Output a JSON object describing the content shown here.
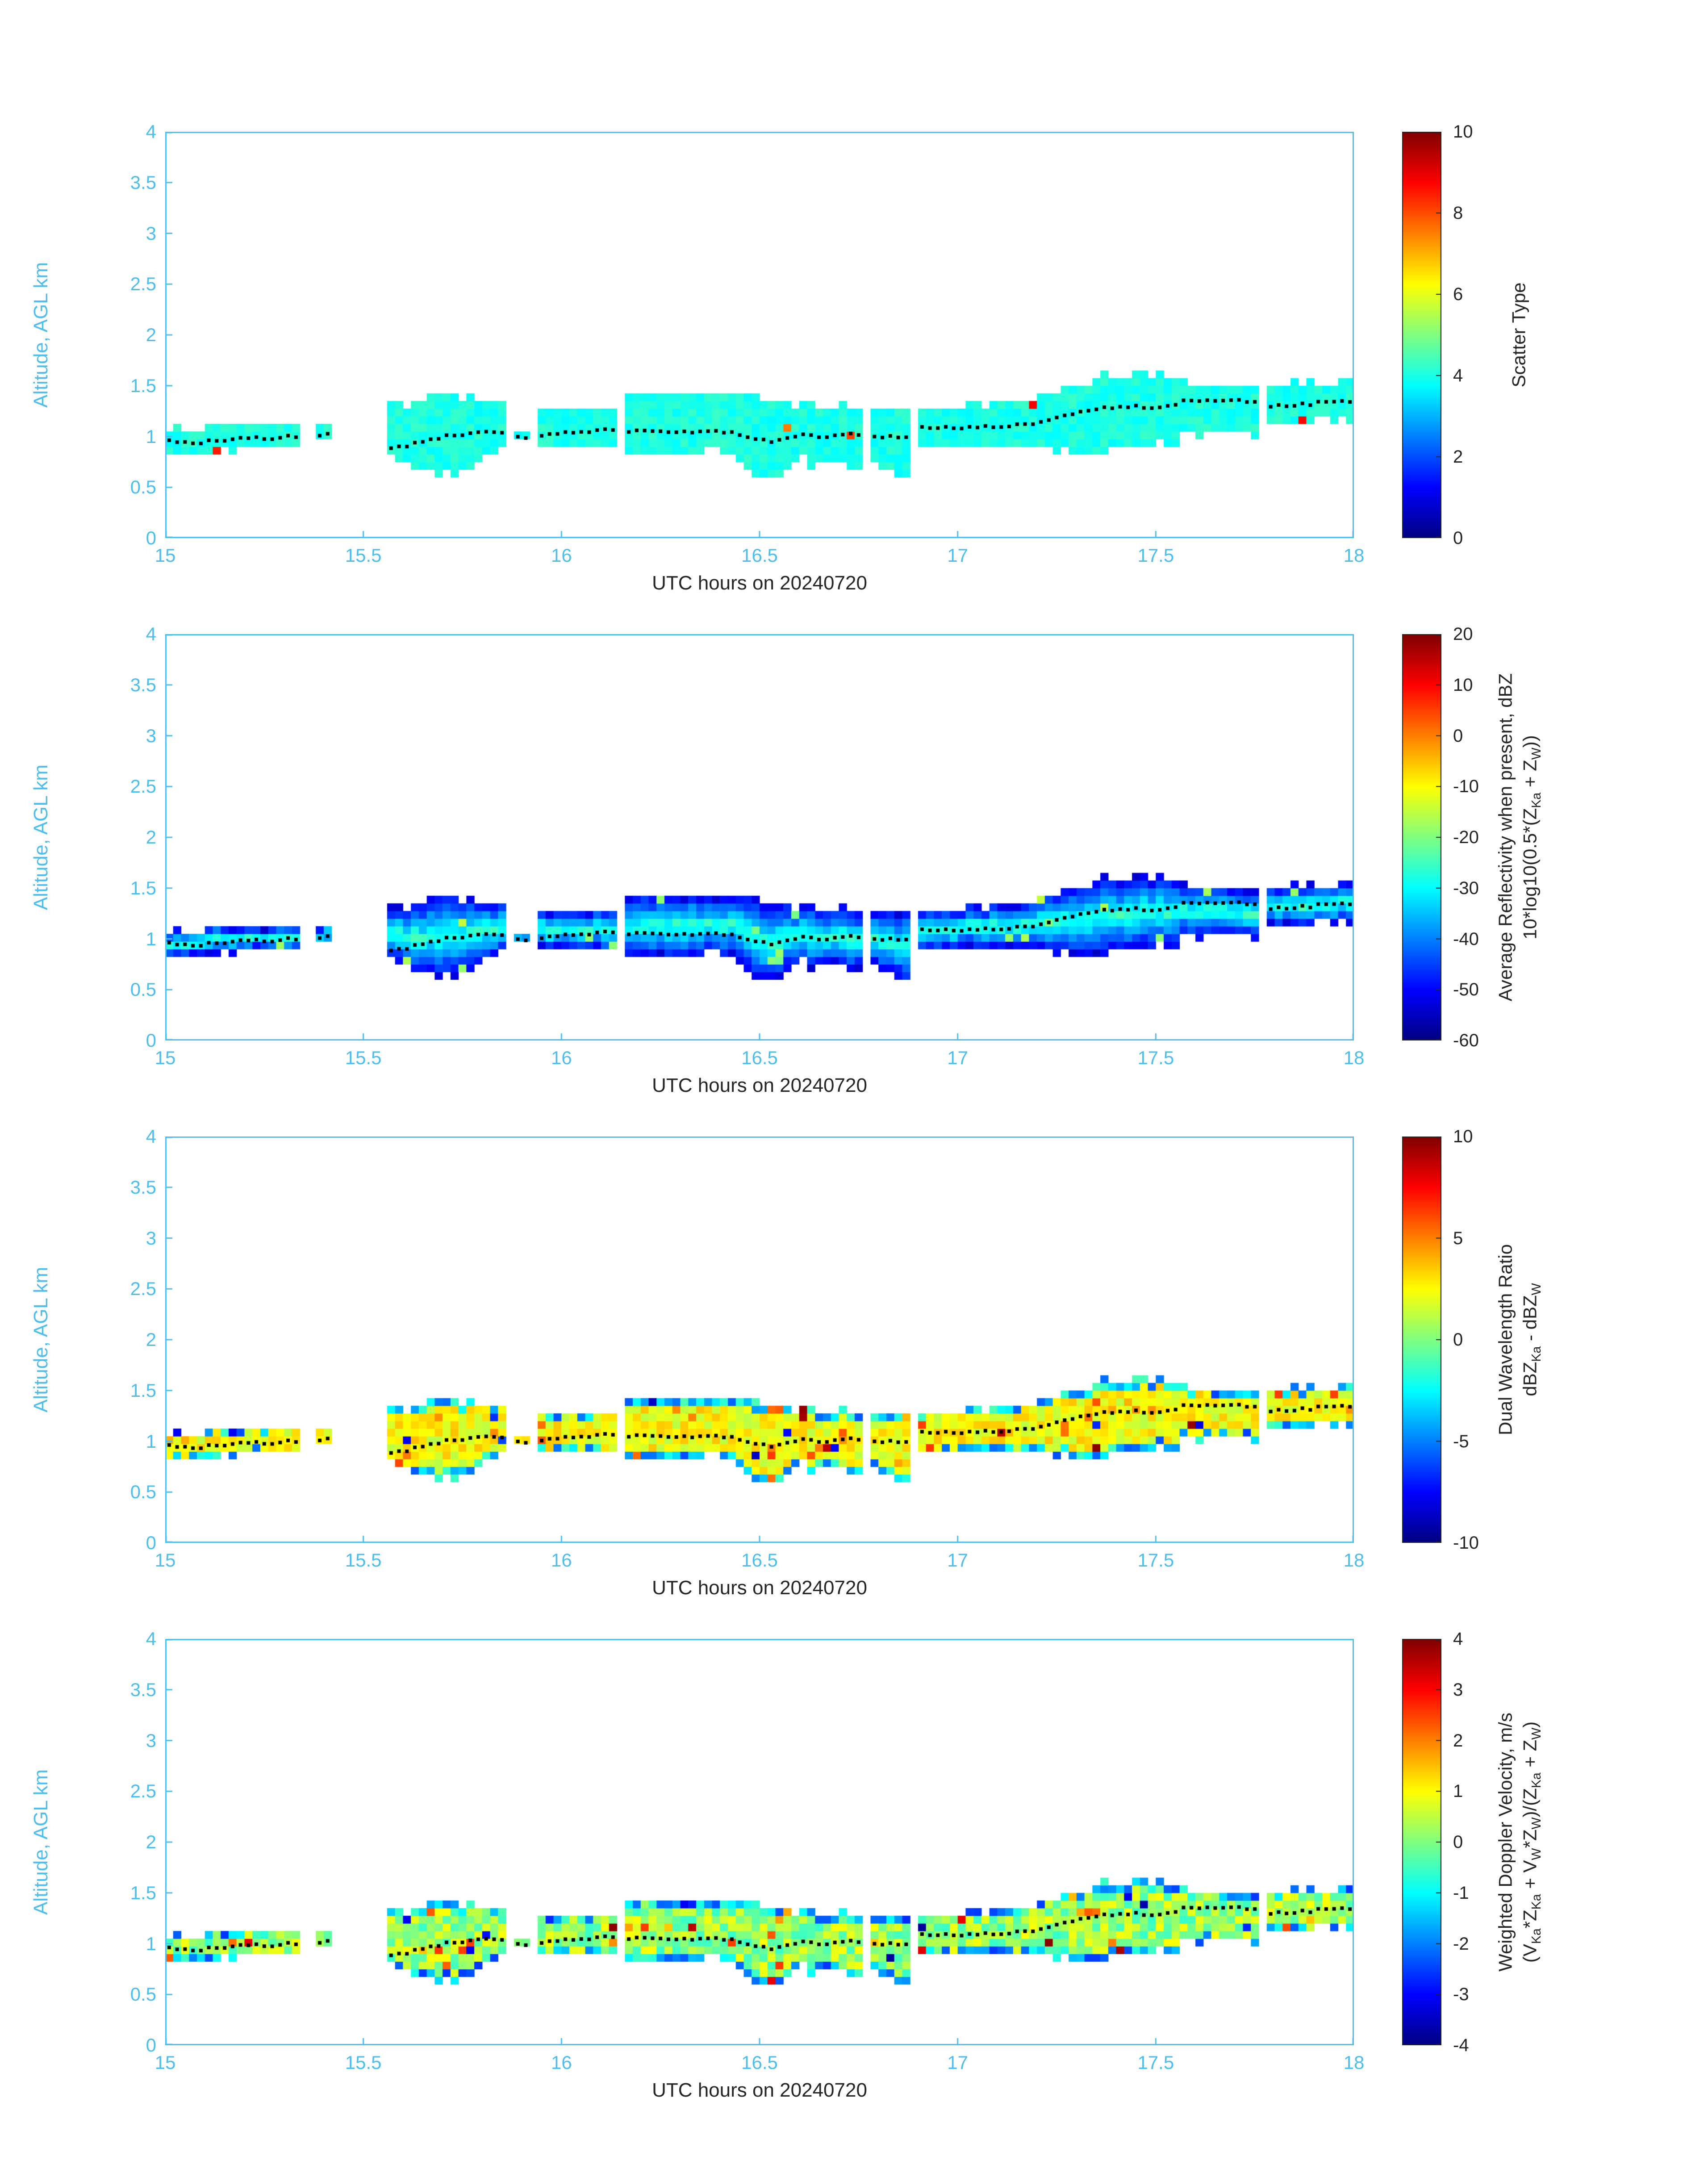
{
  "figure": {
    "background": "#ffffff",
    "axis_color": "#4DBEEE",
    "text_color": "#262626",
    "dot_color": "#000000",
    "date_shown": "20240720"
  },
  "chart_data": [
    {
      "type": "heatmap",
      "xlabel": "UTC hours on 20240720",
      "ylabel": "Altitude, AGL km",
      "xlim": [
        15,
        18
      ],
      "ylim": [
        0,
        4
      ],
      "xtick_values": [
        15,
        15.5,
        16,
        16.5,
        17,
        17.5,
        18
      ],
      "xtick_labels": [
        "15",
        "15.5",
        "16",
        "16.5",
        "17",
        "17.5",
        "18"
      ],
      "ytick_values": [
        0,
        0.5,
        1,
        1.5,
        2,
        2.5,
        3,
        3.5,
        4
      ],
      "ytick_labels": [
        "0",
        "0.5",
        "1",
        "1.5",
        "2",
        "2.5",
        "3",
        "3.5",
        "4"
      ],
      "colormap": "jet",
      "colorbar": {
        "title_lines": [
          "Scatter Type"
        ],
        "range": [
          0,
          10
        ],
        "tick_values": [
          0,
          2,
          4,
          6,
          8,
          10
        ],
        "tick_labels": [
          "0",
          "2",
          "4",
          "6",
          "8",
          "10"
        ]
      },
      "field": {
        "grad": false,
        "edge_frac": 0,
        "edge_value": 4,
        "edge_noise": 0,
        "core_value": 4,
        "core_noise": 0.6,
        "specks": [
          {
            "p": 0.006,
            "vmin": 7.5,
            "vmax": 9.5
          }
        ]
      }
    },
    {
      "type": "heatmap",
      "xlabel": "UTC hours on 20240720",
      "ylabel": "Altitude, AGL km",
      "xlim": [
        15,
        18
      ],
      "ylim": [
        0,
        4
      ],
      "xtick_values": [
        15,
        15.5,
        16,
        16.5,
        17,
        17.5,
        18
      ],
      "xtick_labels": [
        "15",
        "15.5",
        "16",
        "16.5",
        "17",
        "17.5",
        "18"
      ],
      "ytick_values": [
        0,
        0.5,
        1,
        1.5,
        2,
        2.5,
        3,
        3.5,
        4
      ],
      "ytick_labels": [
        "0",
        "0.5",
        "1",
        "1.5",
        "2",
        "2.5",
        "3",
        "3.5",
        "4"
      ],
      "colormap": "jet",
      "colorbar": {
        "title_lines": [
          "Average Reflectivity when present, dBZ",
          "10*log10(0.5*(Z_{Ka} + Z_{W}))"
        ],
        "range": [
          -60,
          20
        ],
        "tick_values": [
          -60,
          -50,
          -40,
          -30,
          -20,
          -10,
          0,
          10,
          20
        ],
        "tick_labels": [
          "-60",
          "-50",
          "-40",
          "-30",
          "-20",
          "-10",
          "0",
          "10",
          "20"
        ]
      },
      "field": {
        "grad": true,
        "edge_value": -52,
        "core_value": -26,
        "noise": 6,
        "specks": [
          {
            "p": 0.025,
            "vmin": -21,
            "vmax": -14
          }
        ]
      }
    },
    {
      "type": "heatmap",
      "xlabel": "UTC hours on 20240720",
      "ylabel": "Altitude, AGL km",
      "xlim": [
        15,
        18
      ],
      "ylim": [
        0,
        4
      ],
      "xtick_values": [
        15,
        15.5,
        16,
        16.5,
        17,
        17.5,
        18
      ],
      "xtick_labels": [
        "15",
        "15.5",
        "16",
        "16.5",
        "17",
        "17.5",
        "18"
      ],
      "ytick_values": [
        0,
        0.5,
        1,
        1.5,
        2,
        2.5,
        3,
        3.5,
        4
      ],
      "ytick_labels": [
        "0",
        "0.5",
        "1",
        "1.5",
        "2",
        "2.5",
        "3",
        "3.5",
        "4"
      ],
      "colormap": "jet",
      "colorbar": {
        "title_lines": [
          "Dual Wavelength Ratio",
          "dBZ_{Ka} - dBZ_{W}"
        ],
        "range": [
          -10,
          10
        ],
        "tick_values": [
          -10,
          -5,
          0,
          5,
          10
        ],
        "tick_labels": [
          "-10",
          "-5",
          "0",
          "5",
          "10"
        ]
      },
      "field": {
        "grad": false,
        "edge_frac": 0.22,
        "edge_value": -3.5,
        "edge_noise": 5,
        "core_value": 2.4,
        "core_noise": 2.6,
        "specks": [
          {
            "p": 0.05,
            "vmin": 3.5,
            "vmax": 6.5
          },
          {
            "p": 0.02,
            "vmin": -9,
            "vmax": -6
          },
          {
            "p": 0.008,
            "vmin": 8.5,
            "vmax": 10
          }
        ]
      }
    },
    {
      "type": "heatmap",
      "xlabel": "UTC hours on 20240720",
      "ylabel": "Altitude, AGL km",
      "xlim": [
        15,
        18
      ],
      "ylim": [
        0,
        4
      ],
      "xtick_values": [
        15,
        15.5,
        16,
        16.5,
        17,
        17.5,
        18
      ],
      "xtick_labels": [
        "15",
        "15.5",
        "16",
        "16.5",
        "17",
        "17.5",
        "18"
      ],
      "ytick_values": [
        0,
        0.5,
        1,
        1.5,
        2,
        2.5,
        3,
        3.5,
        4
      ],
      "ytick_labels": [
        "0",
        "0.5",
        "1",
        "1.5",
        "2",
        "2.5",
        "3",
        "3.5",
        "4"
      ],
      "colormap": "jet",
      "colorbar": {
        "title_lines": [
          "Weighted Doppler Velocity, m/s",
          "(V_{Ka}*Z_{Ka} + V_{W}*Z_{W})/(Z_{Ka} + Z_{W})"
        ],
        "range": [
          -4,
          4
        ],
        "tick_values": [
          -4,
          -3,
          -2,
          -1,
          0,
          1,
          2,
          3,
          4
        ],
        "tick_labels": [
          "-4",
          "-3",
          "-2",
          "-1",
          "0",
          "1",
          "2",
          "3",
          "4"
        ]
      },
      "field": {
        "grad": false,
        "edge_frac": 0.2,
        "edge_value": -1.6,
        "edge_noise": 2.2,
        "core_value": 0.2,
        "core_noise": 1.6,
        "specks": [
          {
            "p": 0.03,
            "vmin": 1.4,
            "vmax": 2.6
          },
          {
            "p": 0.012,
            "vmin": -3.9,
            "vmax": -2.6
          },
          {
            "p": 0.006,
            "vmin": 3.0,
            "vmax": 4.0
          }
        ]
      }
    }
  ],
  "cloud": {
    "note": "Shared echo mask for all four panels: shallow cloud layer between ~0.5 and ~1.65 km AGL, 15-18 UTC, with black dotted reflectivity-weighted centerline near 0.95-1.35 km",
    "tmin": 15,
    "tmax": 18,
    "dt": 0.02,
    "dz": 0.075,
    "seed": 7,
    "segments": [
      {
        "t0": 15.0,
        "t1": 15.1,
        "zb0": 0.84,
        "zb1": 0.82,
        "zt0": 1.1,
        "zt1": 1.08,
        "c0": 0.95,
        "c1": 0.94
      },
      {
        "t0": 15.1,
        "t1": 15.34,
        "zb0": 0.86,
        "zb1": 0.9,
        "zt0": 1.12,
        "zt1": 1.12,
        "c0": 0.96,
        "c1": 1.0
      },
      {
        "t0": 15.38,
        "t1": 15.43,
        "zb0": 0.95,
        "zb1": 0.95,
        "zt0": 1.12,
        "zt1": 1.1,
        "c0": 1.02,
        "c1": 1.03
      },
      {
        "t0": 15.56,
        "t1": 15.7,
        "zb0": 0.8,
        "zb1": 0.6,
        "zt0": 1.28,
        "zt1": 1.42,
        "c0": 0.88,
        "c1": 0.98
      },
      {
        "t0": 15.7,
        "t1": 15.86,
        "zb0": 0.6,
        "zb1": 0.88,
        "zt0": 1.42,
        "zt1": 1.34,
        "c0": 1.0,
        "c1": 1.05
      },
      {
        "t0": 15.89,
        "t1": 15.92,
        "zb0": 0.96,
        "zb1": 0.96,
        "zt0": 1.06,
        "zt1": 1.06,
        "c0": 1.0,
        "c1": 1.0
      },
      {
        "t0": 15.95,
        "t1": 16.15,
        "zb0": 0.9,
        "zb1": 0.88,
        "zt0": 1.26,
        "zt1": 1.3,
        "c0": 1.02,
        "c1": 1.07
      },
      {
        "t0": 16.16,
        "t1": 16.44,
        "zb0": 0.82,
        "zb1": 0.84,
        "zt0": 1.42,
        "zt1": 1.42,
        "c0": 1.05,
        "c1": 1.04
      },
      {
        "t0": 16.44,
        "t1": 16.52,
        "zb0": 0.8,
        "zb1": 0.55,
        "zt0": 1.42,
        "zt1": 1.35,
        "c0": 1.02,
        "c1": 0.95
      },
      {
        "t0": 16.52,
        "t1": 16.62,
        "zb0": 0.55,
        "zb1": 0.8,
        "zt0": 1.35,
        "zt1": 1.3,
        "c0": 0.95,
        "c1": 1.02
      },
      {
        "t0": 16.63,
        "t1": 16.76,
        "zb0": 0.72,
        "zb1": 0.74,
        "zt0": 1.32,
        "zt1": 1.28,
        "c0": 1.0,
        "c1": 1.02
      },
      {
        "t0": 16.79,
        "t1": 16.89,
        "zb0": 0.75,
        "zb1": 0.52,
        "zt0": 1.3,
        "zt1": 1.25,
        "c0": 1.0,
        "c1": 1.0
      },
      {
        "t0": 16.91,
        "t1": 17.21,
        "zb0": 0.9,
        "zb1": 0.9,
        "zt0": 1.3,
        "zt1": 1.35,
        "c0": 1.08,
        "c1": 1.12
      },
      {
        "t0": 17.21,
        "t1": 17.35,
        "zb0": 0.88,
        "zb1": 0.86,
        "zt0": 1.42,
        "zt1": 1.55,
        "c0": 1.15,
        "c1": 1.27
      },
      {
        "t0": 17.35,
        "t1": 17.56,
        "zb0": 0.85,
        "zb1": 0.95,
        "zt0": 1.58,
        "zt1": 1.6,
        "c0": 1.28,
        "c1": 1.3
      },
      {
        "t0": 17.56,
        "t1": 17.76,
        "zb0": 1.05,
        "zb1": 1.0,
        "zt0": 1.55,
        "zt1": 1.45,
        "c0": 1.35,
        "c1": 1.35
      },
      {
        "t0": 17.79,
        "t1": 18.0,
        "zb0": 1.15,
        "zb1": 1.16,
        "zt0": 1.5,
        "zt1": 1.55,
        "c0": 1.3,
        "c1": 1.35
      }
    ]
  }
}
